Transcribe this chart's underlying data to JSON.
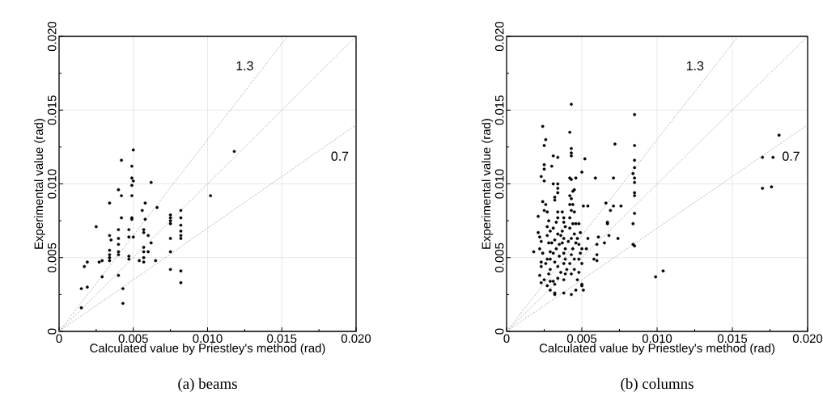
{
  "chart_data": [
    {
      "type": "scatter",
      "title": "(a) beams",
      "xlabel": "Calculated value by Priestley's method (rad)",
      "ylabel": "Experimental value (rad)",
      "xlim": [
        0,
        0.02
      ],
      "ylim": [
        0,
        0.02
      ],
      "grid": true,
      "xticks": [
        0,
        {
          "value": 0.0025,
          "label": null
        },
        0.005,
        {
          "value": 0.0075,
          "label": null
        },
        {
          "value": 0.01,
          "label": "0.010"
        },
        {
          "value": 0.0125,
          "label": null
        },
        0.015,
        {
          "value": 0.0175,
          "label": null
        },
        {
          "value": 0.02,
          "label": "0.020"
        }
      ],
      "yticks": [
        0,
        {
          "value": 0.0025,
          "label": null
        },
        0.005,
        {
          "value": 0.0075,
          "label": null
        },
        {
          "value": 0.01,
          "label": "0.010"
        },
        {
          "value": 0.0125,
          "label": null
        },
        0.015,
        {
          "value": 0.0175,
          "label": null
        },
        {
          "value": 0.02,
          "label": "0.020"
        }
      ],
      "series": [
        {
          "color": "#000000",
          "marker": "circle",
          "x": [
            0.0015,
            0.0015,
            0.0019,
            0.0017,
            0.0019,
            0.0025,
            0.0027,
            0.0029,
            0.0029,
            0.0034,
            0.0034,
            0.0034,
            0.0034,
            0.0034,
            0.0035,
            0.0034,
            0.004,
            0.004,
            0.004,
            0.004,
            0.004,
            0.004,
            0.004,
            0.0042,
            0.0042,
            0.0042,
            0.0043,
            0.0043,
            0.0047,
            0.0047,
            0.0047,
            0.0047,
            0.005,
            0.0049,
            0.0049,
            0.005,
            0.0049,
            0.0049,
            0.0049,
            0.0049,
            0.005,
            0.0054,
            0.0056,
            0.0058,
            0.0058,
            0.0057,
            0.0057,
            0.0057,
            0.0057,
            0.0057,
            0.0057,
            0.006,
            0.006,
            0.0062,
            0.0062,
            0.0065,
            0.0066,
            0.0075,
            0.0075,
            0.0075,
            0.0075,
            0.0075,
            0.0075,
            0.0075,
            0.0082,
            0.0082,
            0.0082,
            0.0082,
            0.0082,
            0.0082,
            0.0082,
            0.0082,
            0.0102,
            0.0118
          ],
          "values": [
            0.0016,
            0.0029,
            0.003,
            0.0044,
            0.0047,
            0.0071,
            0.0047,
            0.0048,
            0.0037,
            0.0065,
            0.0055,
            0.0052,
            0.005,
            0.0048,
            0.0062,
            0.0087,
            0.0096,
            0.0069,
            0.0059,
            0.0063,
            0.0054,
            0.0052,
            0.0038,
            0.0116,
            0.0092,
            0.0077,
            0.0029,
            0.0019,
            0.0069,
            0.0064,
            0.0051,
            0.0049,
            0.0123,
            0.0112,
            0.0104,
            0.0102,
            0.0099,
            0.0092,
            0.0077,
            0.0076,
            0.0064,
            0.0048,
            0.0082,
            0.0087,
            0.0076,
            0.0069,
            0.0067,
            0.0054,
            0.0057,
            0.005,
            0.0047,
            0.0065,
            0.0054,
            0.006,
            0.0101,
            0.0048,
            0.0084,
            0.0079,
            0.0077,
            0.0075,
            0.0073,
            0.0063,
            0.0054,
            0.0042,
            0.0082,
            0.0077,
            0.0072,
            0.0068,
            0.0065,
            0.0063,
            0.0041,
            0.0033,
            0.0092,
            0.0122
          ]
        },
        {
          "type": "line",
          "name": "1.3",
          "color": "#808080",
          "line_style": "dashed",
          "marker": "none",
          "x": [
            0,
            0.01538
          ],
          "values": [
            0,
            0.02
          ]
        },
        {
          "type": "line",
          "color": "#808080",
          "line_style": "dashed",
          "marker": "none",
          "x": [
            0,
            0.02
          ],
          "values": [
            0,
            0.02
          ]
        },
        {
          "type": "line",
          "name": "0.7",
          "color": "#808080",
          "line_style": "dashed",
          "marker": "none",
          "x": [
            0,
            0.02
          ],
          "values": [
            0,
            0.014
          ]
        }
      ]
    },
    {
      "type": "scatter",
      "title": "(b) columns",
      "xlabel": "Calculated value by Priestley's method (rad)",
      "ylabel": "Experimental value (rad)",
      "xlim": [
        0,
        0.02
      ],
      "ylim": [
        0,
        0.02
      ],
      "grid": true,
      "xticks": [
        0,
        {
          "value": 0.0025,
          "label": null
        },
        0.005,
        {
          "value": 0.0075,
          "label": null
        },
        {
          "value": 0.01,
          "label": "0.010"
        },
        {
          "value": 0.0125,
          "label": null
        },
        0.015,
        {
          "value": 0.0175,
          "label": null
        },
        {
          "value": 0.02,
          "label": "0.020"
        }
      ],
      "yticks": [
        0,
        {
          "value": 0.0025,
          "label": null
        },
        0.005,
        {
          "value": 0.0075,
          "label": null
        },
        {
          "value": 0.01,
          "label": "0.010"
        },
        {
          "value": 0.0125,
          "label": null
        },
        0.015,
        {
          "value": 0.0175,
          "label": null
        },
        {
          "value": 0.02,
          "label": "0.020"
        }
      ],
      "series": [
        {
          "color": "#000000",
          "marker": "circle",
          "x": [
            0.0043,
            0.0024,
            0.0026,
            0.0025,
            0.0042,
            0.0043,
            0.0043,
            0.0043,
            0.0031,
            0.0034,
            0.0025,
            0.0025,
            0.003,
            0.0023,
            0.0025,
            0.0052,
            0.005,
            0.0042,
            0.0043,
            0.0046,
            0.0059,
            0.0071,
            0.0072,
            0.0085,
            0.0085,
            0.0085,
            0.0085,
            0.0084,
            0.0085,
            0.0085,
            0.0085,
            0.0085,
            0.0085,
            0.0084,
            0.0084,
            0.0085,
            0.0051,
            0.0054,
            0.0066,
            0.0071,
            0.0076,
            0.0069,
            0.0067,
            0.0067,
            0.0061,
            0.0068,
            0.0074,
            0.0065,
            0.006,
            0.006,
            0.0058,
            0.006,
            0.0018,
            0.0043,
            0.0032,
            0.0032,
            0.005,
            0.0051,
            0.0181,
            0.017,
            0.0177,
            0.017,
            0.0176,
            0.0099,
            0.0104,
            0.0021,
            0.0021,
            0.0022,
            0.0023,
            0.0022,
            0.0024,
            0.0023,
            0.0023,
            0.0022,
            0.0025,
            0.0023,
            0.0027,
            0.0026,
            0.0024,
            0.0025,
            0.0027,
            0.0028,
            0.0027,
            0.0029,
            0.0027,
            0.0028,
            0.0029,
            0.0027,
            0.0026,
            0.0029,
            0.0028,
            0.0029,
            0.0031,
            0.0032,
            0.0032,
            0.0034,
            0.0034,
            0.0031,
            0.0034,
            0.0032,
            0.0034,
            0.0034,
            0.0033,
            0.0031,
            0.0034,
            0.0032,
            0.0035,
            0.0033,
            0.0031,
            0.0035,
            0.0032,
            0.0034,
            0.0036,
            0.0034,
            0.0037,
            0.0038,
            0.0038,
            0.0039,
            0.0037,
            0.0038,
            0.0037,
            0.0039,
            0.0038,
            0.0039,
            0.0038,
            0.004,
            0.0039,
            0.0038,
            0.0042,
            0.0043,
            0.0044,
            0.0045,
            0.0042,
            0.0044,
            0.0043,
            0.0045,
            0.0042,
            0.0044,
            0.0042,
            0.0045,
            0.0043,
            0.0046,
            0.0044,
            0.0043,
            0.0045,
            0.0042,
            0.0045,
            0.0043,
            0.0046,
            0.0048,
            0.0049,
            0.0047,
            0.0048,
            0.005,
            0.0049,
            0.0048,
            0.005,
            0.0048,
            0.0054,
            0.0053,
            0.0047,
            0.005,
            0.0046,
            0.003,
            0.0029,
            0.0036,
            0.0041,
            0.0038,
            0.0029
          ],
          "values": [
            0.0154,
            0.0139,
            0.013,
            0.0126,
            0.0135,
            0.0124,
            0.0121,
            0.0119,
            0.0119,
            0.0118,
            0.0113,
            0.011,
            0.0112,
            0.0105,
            0.0102,
            0.0117,
            0.0108,
            0.0104,
            0.0103,
            0.0104,
            0.0104,
            0.0104,
            0.0127,
            0.0147,
            0.0126,
            0.0116,
            0.0111,
            0.0107,
            0.0104,
            0.0101,
            0.0094,
            0.0092,
            0.008,
            0.0073,
            0.0059,
            0.0058,
            0.0085,
            0.0085,
            0.0087,
            0.0085,
            0.0085,
            0.0082,
            0.0074,
            0.0073,
            0.0064,
            0.0065,
            0.0063,
            0.006,
            0.0059,
            0.0052,
            0.0049,
            0.0048,
            0.0054,
            0.0025,
            0.0025,
            0.0026,
            0.0031,
            0.0028,
            0.0133,
            0.0118,
            0.0118,
            0.0097,
            0.0098,
            0.0037,
            0.0041,
            0.0078,
            0.0067,
            0.0064,
            0.0061,
            0.0056,
            0.0053,
            0.0047,
            0.0044,
            0.0038,
            0.0035,
            0.0033,
            0.0031,
            0.0086,
            0.0088,
            0.0082,
            0.0081,
            0.0075,
            0.0071,
            0.0068,
            0.0065,
            0.006,
            0.0054,
            0.0049,
            0.0046,
            0.0042,
            0.0039,
            0.0034,
            0.0034,
            0.0032,
            0.0091,
            0.0094,
            0.0097,
            0.01,
            0.01,
            0.0089,
            0.0081,
            0.0077,
            0.0074,
            0.007,
            0.0066,
            0.0062,
            0.0059,
            0.0056,
            0.0053,
            0.0051,
            0.0047,
            0.0044,
            0.004,
            0.0036,
            0.0081,
            0.0077,
            0.0074,
            0.0071,
            0.0068,
            0.0063,
            0.006,
            0.0056,
            0.0053,
            0.0049,
            0.0046,
            0.0042,
            0.0039,
            0.0035,
            0.0092,
            0.009,
            0.0095,
            0.0096,
            0.0086,
            0.0086,
            0.0082,
            0.0081,
            0.0077,
            0.0073,
            0.007,
            0.0066,
            0.0063,
            0.006,
            0.0056,
            0.0052,
            0.0049,
            0.0046,
            0.0042,
            0.0039,
            0.0073,
            0.0073,
            0.0067,
            0.0063,
            0.0059,
            0.0056,
            0.0053,
            0.0049,
            0.0046,
            0.004,
            0.0063,
            0.0056,
            0.0035,
            0.0032,
            0.0028,
            0.006,
            0.0049,
            0.0065,
            0.0061,
            0.0026,
            0.0028
          ]
        },
        {
          "type": "line",
          "name": "1.3",
          "color": "#808080",
          "line_style": "dashed",
          "marker": "none",
          "x": [
            0,
            0.01538
          ],
          "values": [
            0,
            0.02
          ]
        },
        {
          "type": "line",
          "color": "#808080",
          "line_style": "dashed",
          "marker": "none",
          "x": [
            0,
            0.02
          ],
          "values": [
            0,
            0.02
          ]
        },
        {
          "type": "line",
          "name": "0.7",
          "color": "#808080",
          "line_style": "dashed",
          "marker": "none",
          "x": [
            0,
            0.02
          ],
          "values": [
            0,
            0.014
          ]
        }
      ]
    }
  ]
}
